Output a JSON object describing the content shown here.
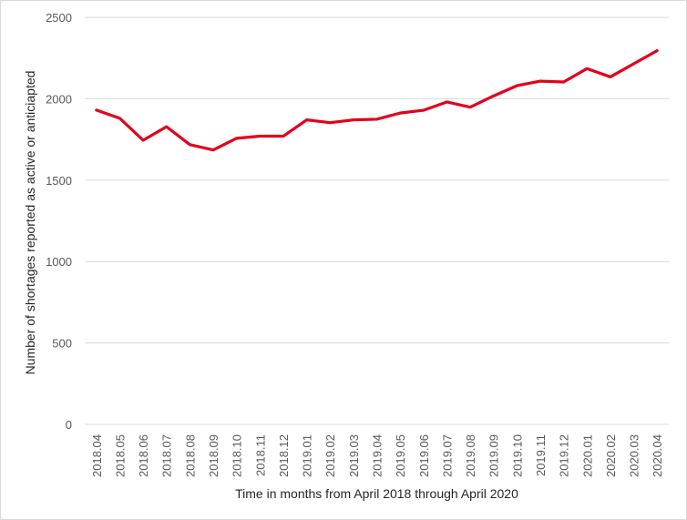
{
  "chart_data": {
    "type": "line",
    "xlabel": "Time in months from April 2018 through April 2020",
    "ylabel": "Number of shortages reported as active or anticiapted",
    "ylim": [
      0,
      2500
    ],
    "yticks": [
      "0",
      "500",
      "1000",
      "1500",
      "2000",
      "2500"
    ],
    "grid": true,
    "categories": [
      "2018.04",
      "2018.05",
      "2018.06",
      "2018.07",
      "2018.08",
      "2018.09",
      "2018.10",
      "2018.11",
      "2018.12",
      "2019.01",
      "2019.02",
      "2019.03",
      "2019.04",
      "2019.05",
      "2019.06",
      "2019.07",
      "2019.08",
      "2019.09",
      "2019.10",
      "2019.11",
      "2019.12",
      "2020.01",
      "2020.02",
      "2020.03",
      "2020.04"
    ],
    "series": [
      {
        "color": "#e3001b",
        "values": [
          1930,
          1880,
          1745,
          1828,
          1718,
          1685,
          1757,
          1770,
          1770,
          1870,
          1853,
          1870,
          1874,
          1912,
          1929,
          1980,
          1948,
          2017,
          2080,
          2108,
          2103,
          2185,
          2134,
          2215,
          2295
        ]
      }
    ]
  }
}
